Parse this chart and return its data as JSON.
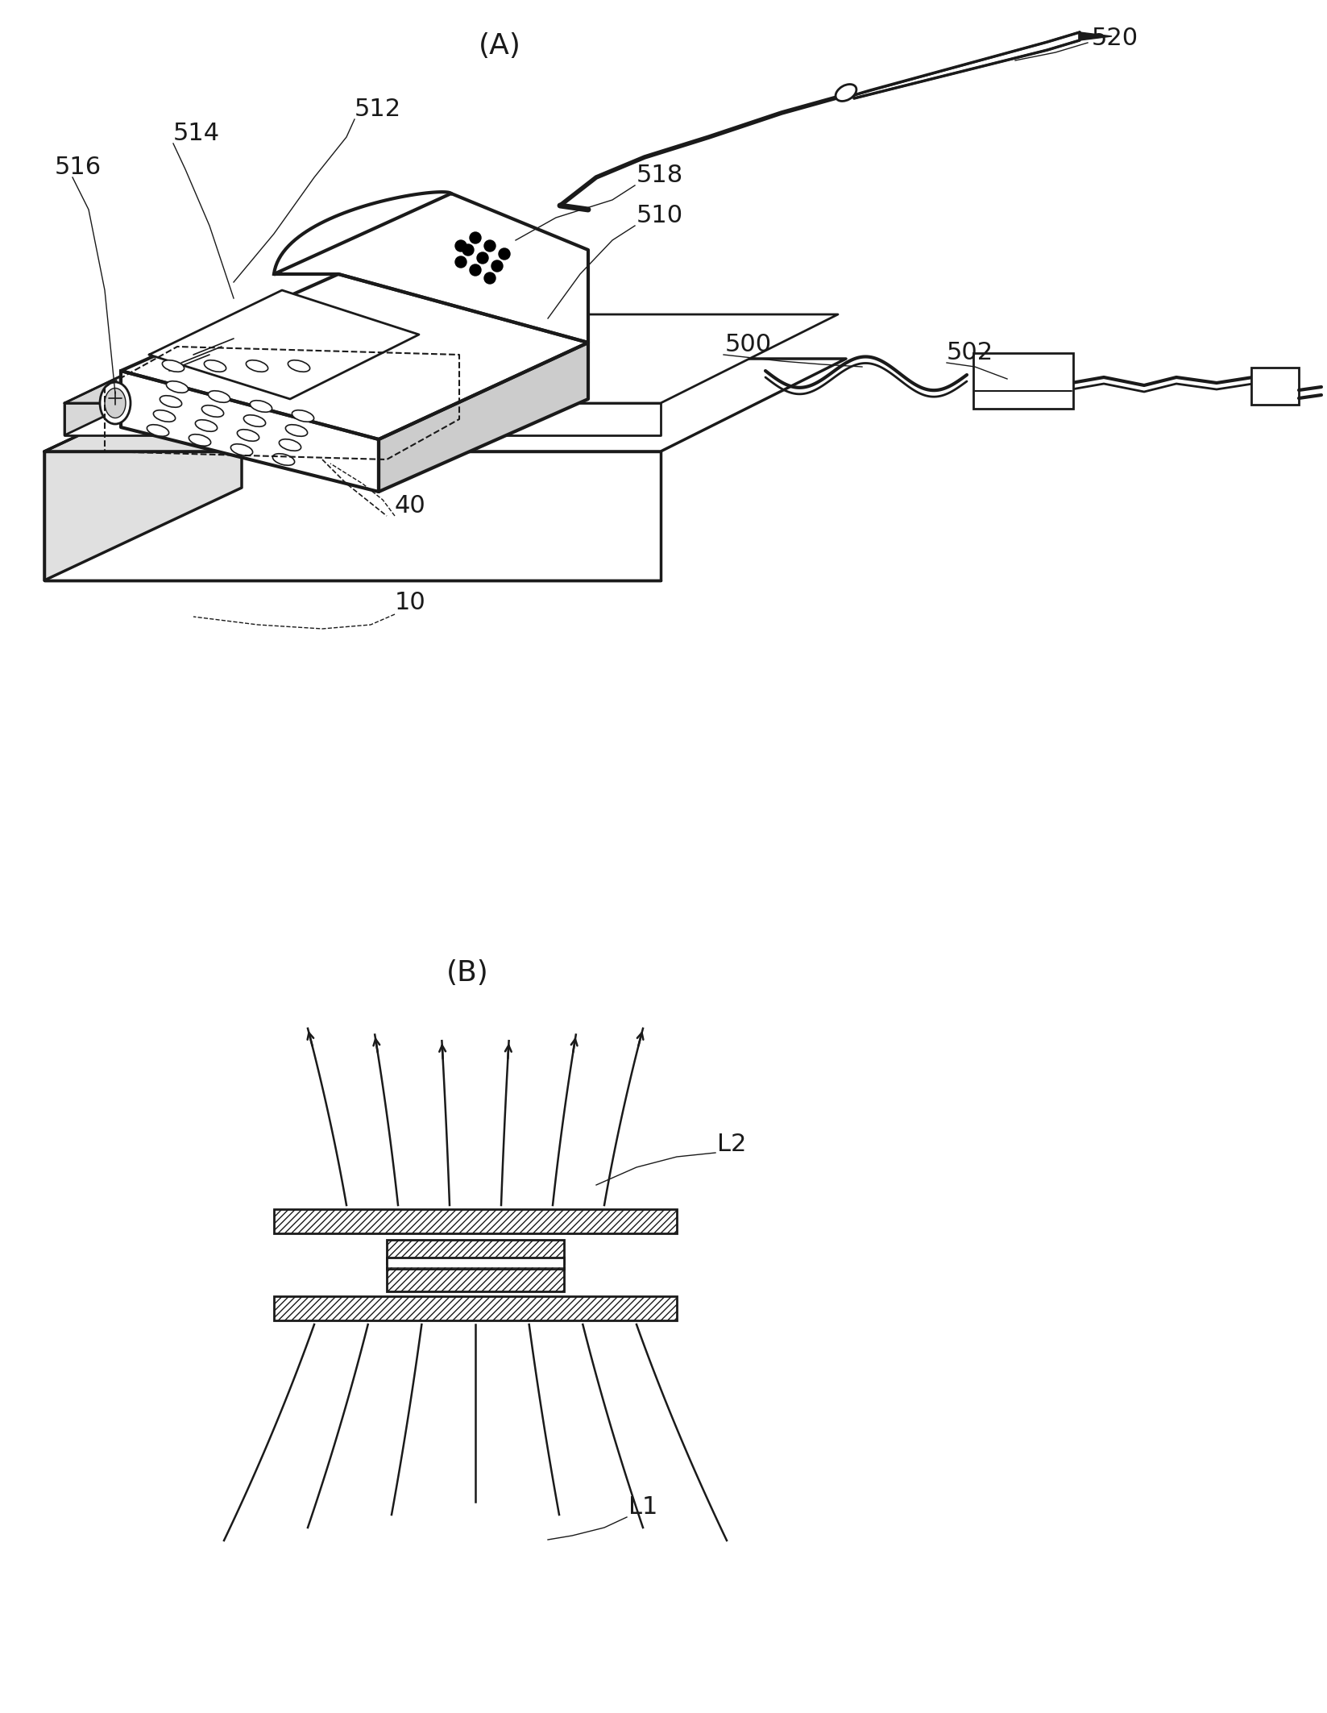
{
  "bg_color": "#ffffff",
  "line_color": "#1a1a1a",
  "lw": 2.0,
  "fig_w": 16.47,
  "fig_h": 21.25,
  "dpi": 100,
  "label_A": "(A)",
  "label_B": "(B)",
  "fs_label": 26,
  "fs_ref": 22
}
